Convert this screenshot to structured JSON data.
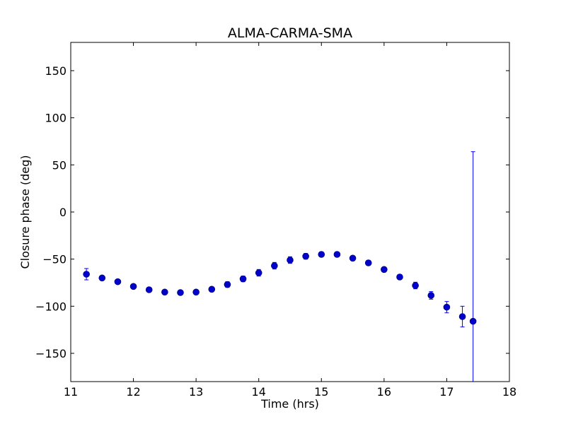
{
  "chart_data": {
    "type": "scatter",
    "title": "ALMA-CARMA-SMA",
    "xlabel": "Time (hrs)",
    "ylabel": "Closure phase (deg)",
    "xlim": [
      11,
      18
    ],
    "ylim": [
      -180,
      180
    ],
    "xticks": [
      11,
      12,
      13,
      14,
      15,
      16,
      17,
      18
    ],
    "yticks": [
      -150,
      -100,
      -50,
      0,
      50,
      100,
      150
    ],
    "xtick_labels": [
      "11",
      "12",
      "13",
      "14",
      "15",
      "16",
      "17",
      "18"
    ],
    "ytick_labels": [
      "−150",
      "−100",
      "−50",
      "0",
      "50",
      "100",
      "150"
    ],
    "grid": false,
    "marker_color": "#0000cc",
    "line_color": "#0000ff",
    "series": [
      {
        "x": [
          11.25,
          11.5,
          11.75,
          12.0,
          12.25,
          12.5,
          12.75,
          13.0,
          13.25,
          13.5,
          13.75,
          14.0,
          14.25,
          14.5,
          14.75,
          15.0,
          15.25,
          15.5,
          15.75,
          16.0,
          16.25,
          16.5,
          16.75,
          17.0,
          17.25,
          17.42
        ],
        "y": [
          -66,
          -70,
          -74,
          -79,
          -82.5,
          -85,
          -85.5,
          -85,
          -82,
          -77,
          -71,
          -64.5,
          -57,
          -51,
          -47,
          -45,
          -45,
          -49,
          -54,
          -61,
          -69,
          -78,
          -88.5,
          -101,
          -111,
          -116
        ],
        "yerr": [
          6,
          2,
          2,
          2,
          2,
          2,
          2,
          2,
          2.5,
          3,
          3,
          3.5,
          3.5,
          3.5,
          3,
          2.5,
          2.5,
          2.5,
          2.5,
          2.5,
          2.5,
          3.5,
          4,
          6,
          11,
          180
        ]
      }
    ]
  }
}
